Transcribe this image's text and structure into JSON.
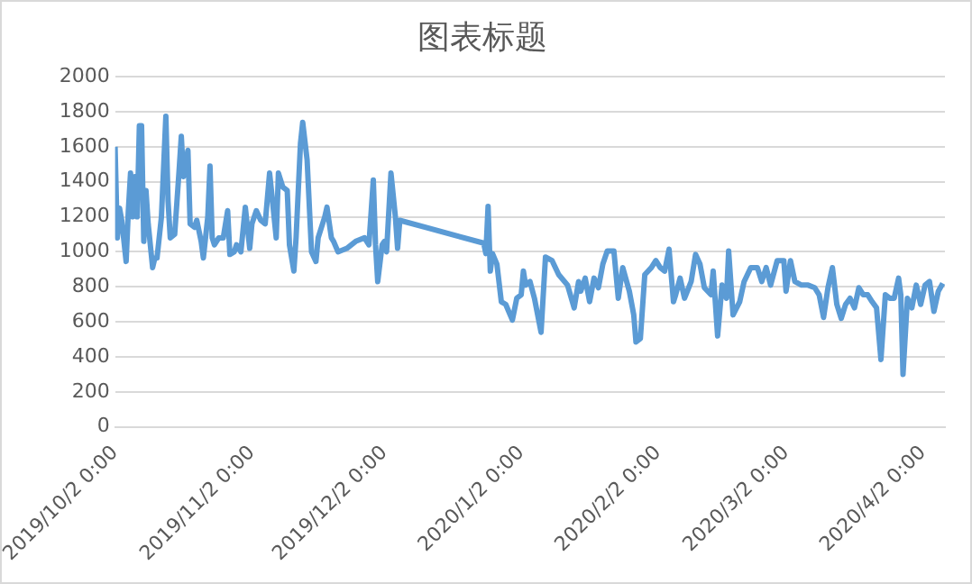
{
  "chart_data": {
    "type": "line",
    "title": "图表标题",
    "x": [
      "2019-10-02",
      "2019-10-02T12:00",
      "2019-10-03",
      "2019-10-03T12:00",
      "2019-10-04T12:00",
      "2019-10-05",
      "2019-10-05T12:00",
      "2019-10-06",
      "2019-10-06T12:00",
      "2019-10-07",
      "2019-10-07T12:00",
      "2019-10-08",
      "2019-10-08T12:00",
      "2019-10-09",
      "2019-10-09T12:00",
      "2019-10-10T12:00",
      "2019-10-11",
      "2019-10-11T12:00",
      "2019-10-12T12:00",
      "2019-10-13T12:00",
      "2019-10-14",
      "2019-10-14T12:00",
      "2019-10-15T12:00",
      "2019-10-16T12:00",
      "2019-10-17",
      "2019-10-17T12:00",
      "2019-10-18T12:00",
      "2019-10-19",
      "2019-10-20",
      "2019-10-20T12:00",
      "2019-10-21T12:00",
      "2019-10-22",
      "2019-10-23",
      "2019-10-23T12:00",
      "2019-10-24",
      "2019-10-24T12:00",
      "2019-10-25T12:00",
      "2019-10-26T12:00",
      "2019-10-27T12:00",
      "2019-10-28",
      "2019-10-29",
      "2019-10-29T12:00",
      "2019-10-30T12:00",
      "2019-10-31T12:00",
      "2019-11-01T12:00",
      "2019-11-02",
      "2019-11-03",
      "2019-11-04",
      "2019-11-05",
      "2019-11-06",
      "2019-11-06T12:00",
      "2019-11-07T12:00",
      "2019-11-08",
      "2019-11-09",
      "2019-11-10",
      "2019-11-10T12:00",
      "2019-11-11T12:00",
      "2019-11-12",
      "2019-11-13",
      "2019-11-13T12:00",
      "2019-11-14T12:00",
      "2019-11-15T12:00",
      "2019-11-16T12:00",
      "2019-11-17",
      "2019-11-18T12:00",
      "2019-11-19",
      "2019-11-20",
      "2019-11-20T12:00",
      "2019-11-21T12:00",
      "2019-11-23T12:00",
      "2019-11-25T12:00",
      "2019-11-27T12:00",
      "2019-11-28T12:00",
      "2019-11-29T12:00",
      "2019-11-30",
      "2019-11-30T12:00",
      "2019-12-01T12:00",
      "2019-12-02",
      "2019-12-02T12:00",
      "2019-12-03T12:00",
      "2019-12-04T12:00",
      "2019-12-05",
      "2019-12-05T12:00",
      "2019-12-24T12:00",
      "2019-12-25",
      "2019-12-25T12:00",
      "2019-12-26",
      "2019-12-26T12:00",
      "2019-12-27T12:00",
      "2019-12-28T12:00",
      "2019-12-29T12:00",
      "2019-12-31",
      "2020-01-01",
      "2020-01-02",
      "2020-01-02T12:00",
      "2020-01-03",
      "2020-01-04",
      "2020-01-05",
      "2020-01-06T12:00",
      "2020-01-07T12:00",
      "2020-01-09",
      "2020-01-10T12:00",
      "2020-01-12T12:00",
      "2020-01-14",
      "2020-01-15",
      "2020-01-15T12:00",
      "2020-01-16T12:00",
      "2020-01-17T12:00",
      "2020-01-18T12:00",
      "2020-01-19T12:00",
      "2020-01-20T12:00",
      "2020-01-21T12:00",
      "2020-01-23",
      "2020-01-24",
      "2020-01-25",
      "2020-01-26T12:00",
      "2020-01-27T12:00",
      "2020-01-28",
      "2020-01-29",
      "2020-01-30",
      "2020-01-31T12:00",
      "2020-02-01T12:00",
      "2020-02-02T12:00",
      "2020-02-03T12:00",
      "2020-02-04T12:00",
      "2020-02-05T12:00",
      "2020-02-06",
      "2020-02-07",
      "2020-02-08",
      "2020-02-09T12:00",
      "2020-02-10T12:00",
      "2020-02-11T12:00",
      "2020-02-12T12:00",
      "2020-02-14",
      "2020-02-14T12:00",
      "2020-02-15T12:00",
      "2020-02-16T12:00",
      "2020-02-17T12:00",
      "2020-02-18",
      "2020-02-19",
      "2020-02-20T12:00",
      "2020-02-21T12:00",
      "2020-02-23",
      "2020-02-24T12:00",
      "2020-02-25T12:00",
      "2020-02-26T12:00",
      "2020-02-27T12:00",
      "2020-02-29",
      "2020-03-01T12:00",
      "2020-03-02",
      "2020-03-03",
      "2020-03-04",
      "2020-03-05T12:00",
      "2020-03-07",
      "2020-03-08T12:00",
      "2020-03-09T12:00",
      "2020-03-10T12:00",
      "2020-03-11T12:00",
      "2020-03-12T12:00",
      "2020-03-13T12:00",
      "2020-03-14T12:00",
      "2020-03-15T12:00",
      "2020-03-16T12:00",
      "2020-03-17T12:00",
      "2020-03-18T12:00",
      "2020-03-19T12:00",
      "2020-03-20T12:00",
      "2020-03-21T12:00",
      "2020-03-22T12:00",
      "2020-03-23T12:00",
      "2020-03-24T12:00",
      "2020-03-25T12:00",
      "2020-03-26T12:00",
      "2020-03-27T12:00",
      "2020-03-28",
      "2020-03-28T12:00",
      "2020-03-29T12:00",
      "2020-03-30T12:00",
      "2020-03-31T12:00",
      "2020-04-01T12:00",
      "2020-04-02T12:00",
      "2020-04-03T12:00",
      "2020-04-04T12:00",
      "2020-04-05T12:00",
      "2020-04-06T12:00"
    ],
    "series": [
      {
        "color": "#5b9bd5",
        "values": [
          1600,
          1080,
          1250,
          1180,
          945,
          1235,
          1450,
          1200,
          1430,
          1200,
          1720,
          1720,
          1060,
          1350,
          1160,
          910,
          965,
          965,
          1200,
          1775,
          1290,
          1080,
          1100,
          1465,
          1660,
          1430,
          1580,
          1160,
          1140,
          1180,
          1060,
          965,
          1200,
          1490,
          1080,
          1040,
          1080,
          1080,
          1235,
          985,
          1000,
          1040,
          1000,
          1255,
          1020,
          1160,
          1235,
          1180,
          1160,
          1450,
          1330,
          1080,
          1450,
          1370,
          1350,
          1040,
          890,
          1080,
          1620,
          1740,
          1525,
          1000,
          945,
          1080,
          1200,
          1255,
          1080,
          1060,
          1000,
          1020,
          1060,
          1080,
          1040,
          1410,
          1040,
          830,
          1040,
          1060,
          1000,
          1450,
          1200,
          1020,
          1180,
          1050,
          990,
          1260,
          890,
          990,
          930,
          715,
          700,
          610,
          735,
          755,
          890,
          810,
          830,
          735,
          540,
          970,
          950,
          870,
          810,
          680,
          830,
          775,
          850,
          715,
          850,
          795,
          930,
          1005,
          1005,
          735,
          910,
          775,
          640,
          485,
          505,
          870,
          910,
          950,
          910,
          890,
          1015,
          715,
          755,
          850,
          735,
          830,
          985,
          930,
          795,
          755,
          890,
          520,
          810,
          735,
          1005,
          640,
          715,
          830,
          910,
          910,
          830,
          910,
          810,
          950,
          950,
          775,
          950,
          830,
          810,
          810,
          795,
          755,
          625,
          795,
          910,
          700,
          620,
          700,
          735,
          680,
          795,
          755,
          755,
          715,
          680,
          385,
          755,
          735,
          735,
          850,
          755,
          300,
          735,
          680,
          810,
          700,
          810,
          830,
          660,
          775,
          820
        ]
      }
    ],
    "xlim": [
      "2019-10-02",
      "2020-04-07"
    ],
    "xticks": [
      {
        "value": "2019-10-02",
        "label": "2019/10/2 0:00"
      },
      {
        "value": "2019-11-02",
        "label": "2019/11/2 0:00"
      },
      {
        "value": "2019-12-02",
        "label": "2019/12/2 0:00"
      },
      {
        "value": "2020-01-02",
        "label": "2020/1/2 0:00"
      },
      {
        "value": "2020-02-02",
        "label": "2020/2/2 0:00"
      },
      {
        "value": "2020-03-02",
        "label": "2020/3/2 0:00"
      },
      {
        "value": "2020-04-02",
        "label": "2020/4/2 0:00"
      }
    ],
    "ylim": [
      0,
      2000
    ],
    "yticks": [
      0,
      200,
      400,
      600,
      800,
      1000,
      1200,
      1400,
      1600,
      1800,
      2000
    ],
    "grid": "y",
    "legend": false,
    "marker": "none",
    "line_style": "solid"
  }
}
